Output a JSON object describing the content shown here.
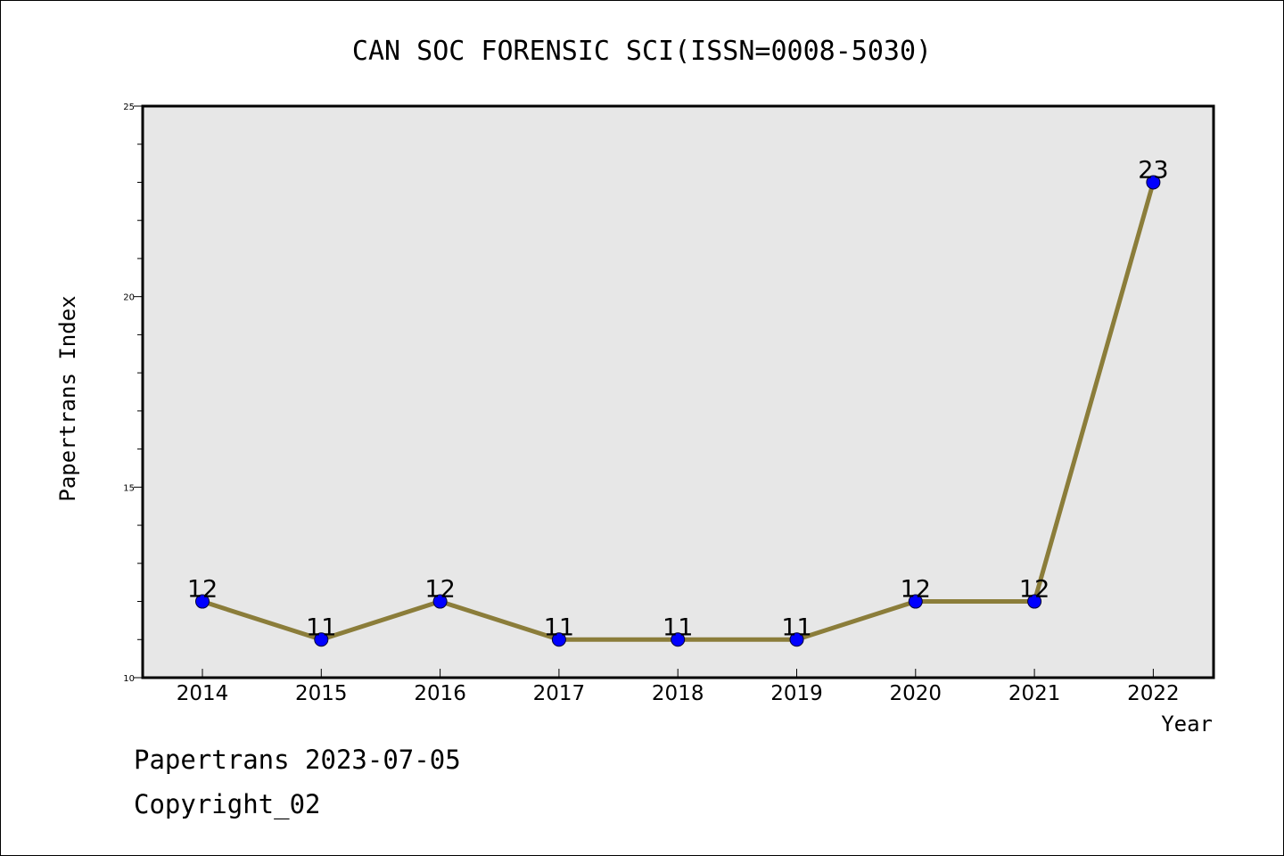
{
  "chart_data": {
    "type": "line",
    "title": "CAN SOC FORENSIC SCI(ISSN=0008-5030)",
    "xlabel": "Year",
    "ylabel": "Papertrans Index",
    "categories": [
      "2014",
      "2015",
      "2016",
      "2017",
      "2018",
      "2019",
      "2020",
      "2021",
      "2022"
    ],
    "series": [
      {
        "values": [
          12,
          11,
          12,
          11,
          11,
          11,
          12,
          12,
          23
        ]
      }
    ],
    "ylim": [
      10,
      25
    ],
    "yticks": [
      10,
      15,
      20,
      25
    ],
    "grid": false,
    "line_color": "#8B7D3A",
    "marker_color": "#0000FF",
    "plot_background": "#E7E7E7"
  },
  "footer": {
    "line1": "Papertrans 2023-07-05",
    "line2": "Copyright_02"
  }
}
